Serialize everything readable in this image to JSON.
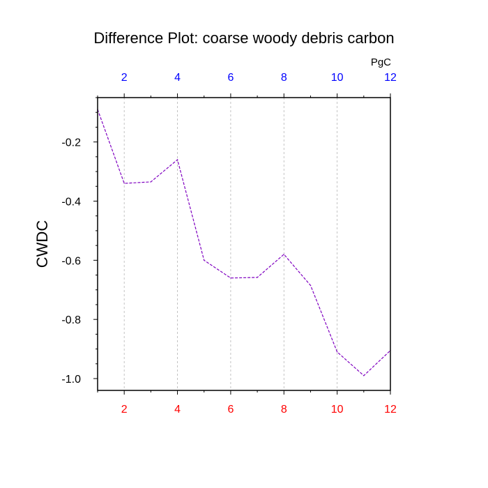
{
  "chart_data": {
    "type": "line",
    "title": "Difference Plot: coarse woody debris carbon",
    "units_label": "PgC",
    "ylabel": "CWDC",
    "xlabel": "",
    "xlim": [
      1,
      12
    ],
    "ylim": [
      -1.04,
      -0.05
    ],
    "x_ticks": [
      2,
      4,
      6,
      8,
      10,
      12
    ],
    "x_tick_labels": [
      "2",
      "4",
      "6",
      "8",
      "10",
      "12"
    ],
    "y_ticks": [
      -0.2,
      -0.4,
      -0.6,
      -0.8,
      -1.0
    ],
    "y_tick_labels": [
      "-0.2",
      "-0.4",
      "-0.6",
      "-0.8",
      "-1.0"
    ],
    "x_tick_color_bottom": "#ff0000",
    "x_tick_color_top": "#0000ff",
    "line_color": "#7f00c0",
    "line_style": "dashed",
    "grid": "vertical dashed at major x ticks",
    "series": [
      {
        "x": [
          1,
          2,
          3,
          4,
          5,
          6,
          7,
          8,
          9,
          10,
          11,
          12
        ],
        "values": [
          -0.09,
          -0.34,
          -0.335,
          -0.26,
          -0.6,
          -0.66,
          -0.658,
          -0.58,
          -0.685,
          -0.91,
          -0.99,
          -0.905
        ]
      }
    ]
  }
}
